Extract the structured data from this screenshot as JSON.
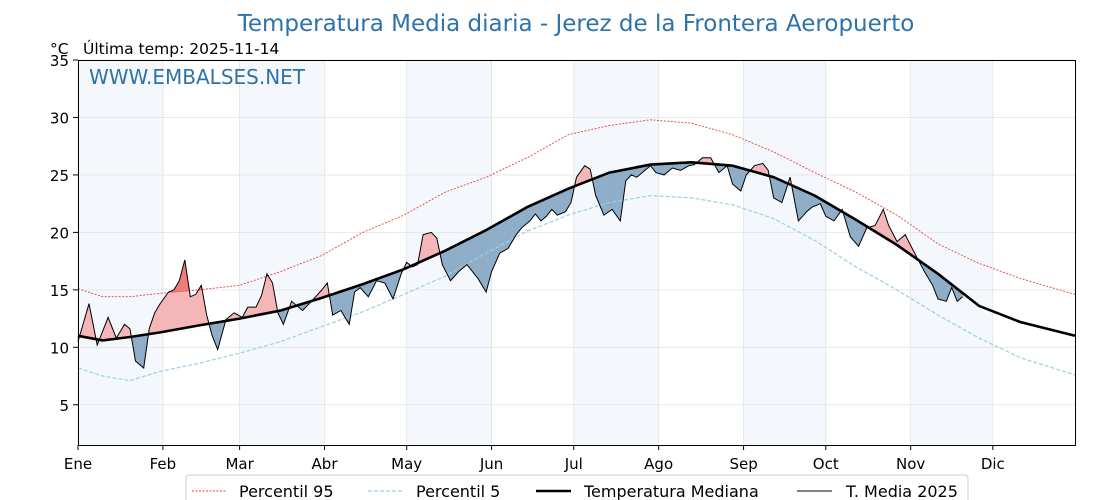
{
  "chart_data": {
    "type": "line",
    "title": "Temperatura Media diaria - Jerez de la Frontera Aeropuerto",
    "unit": "°C",
    "last_temp_label": "Última temp: 2025-11-14",
    "watermark": "WWW.EMBALSES.NET",
    "ylim": [
      1.5,
      35
    ],
    "yticks": [
      5,
      10,
      15,
      20,
      25,
      30,
      35
    ],
    "months": [
      "Ene",
      "Feb",
      "Mar",
      "Abr",
      "May",
      "Jun",
      "Jul",
      "Ago",
      "Sep",
      "Oct",
      "Nov",
      "Dic"
    ],
    "grid": true,
    "legend_position": "bottom",
    "colors": {
      "p95": "#e8433a",
      "p5": "#9ccfe0",
      "median": "#000000",
      "current": "#000000",
      "above_fill": "#f4b6b6",
      "above_extreme_fill": "#ee7272",
      "below_fill": "#8eadc8",
      "band": "#f4f8fc",
      "title": "#2e73a8"
    },
    "series": [
      {
        "name": "Percentil 95",
        "key": "p95",
        "points": [
          [
            1,
            15.1
          ],
          [
            10,
            14.4
          ],
          [
            20,
            14.4
          ],
          [
            31,
            14.7
          ],
          [
            45,
            15.0
          ],
          [
            60,
            15.4
          ],
          [
            75,
            16.6
          ],
          [
            90,
            18.0
          ],
          [
            105,
            20.0
          ],
          [
            120,
            21.5
          ],
          [
            135,
            23.5
          ],
          [
            150,
            24.8
          ],
          [
            165,
            26.5
          ],
          [
            180,
            28.5
          ],
          [
            195,
            29.3
          ],
          [
            210,
            29.8
          ],
          [
            225,
            29.5
          ],
          [
            240,
            28.5
          ],
          [
            255,
            27.0
          ],
          [
            270,
            25.2
          ],
          [
            285,
            23.5
          ],
          [
            300,
            21.5
          ],
          [
            315,
            19.0
          ],
          [
            330,
            17.3
          ],
          [
            345,
            16.0
          ],
          [
            365,
            14.6
          ]
        ]
      },
      {
        "name": "Percentil 5",
        "key": "p5",
        "points": [
          [
            1,
            8.2
          ],
          [
            10,
            7.5
          ],
          [
            20,
            7.1
          ],
          [
            31,
            7.9
          ],
          [
            45,
            8.6
          ],
          [
            60,
            9.5
          ],
          [
            75,
            10.5
          ],
          [
            90,
            11.8
          ],
          [
            105,
            13.1
          ],
          [
            120,
            14.6
          ],
          [
            135,
            16.2
          ],
          [
            150,
            18.2
          ],
          [
            165,
            20.1
          ],
          [
            180,
            21.5
          ],
          [
            195,
            22.6
          ],
          [
            210,
            23.2
          ],
          [
            225,
            23.0
          ],
          [
            240,
            22.4
          ],
          [
            255,
            21.2
          ],
          [
            270,
            19.3
          ],
          [
            285,
            17.0
          ],
          [
            300,
            15.0
          ],
          [
            315,
            12.8
          ],
          [
            330,
            10.8
          ],
          [
            345,
            9.1
          ],
          [
            365,
            7.6
          ]
        ]
      },
      {
        "name": "Temperatura Mediana",
        "key": "median",
        "points": [
          [
            1,
            11.0
          ],
          [
            10,
            10.6
          ],
          [
            20,
            10.9
          ],
          [
            31,
            11.3
          ],
          [
            45,
            11.9
          ],
          [
            60,
            12.5
          ],
          [
            75,
            13.2
          ],
          [
            90,
            14.3
          ],
          [
            105,
            15.5
          ],
          [
            120,
            16.8
          ],
          [
            135,
            18.4
          ],
          [
            150,
            20.2
          ],
          [
            165,
            22.2
          ],
          [
            180,
            23.8
          ],
          [
            195,
            25.2
          ],
          [
            210,
            25.9
          ],
          [
            225,
            26.1
          ],
          [
            240,
            25.8
          ],
          [
            255,
            24.8
          ],
          [
            270,
            23.2
          ],
          [
            285,
            21.1
          ],
          [
            300,
            18.9
          ],
          [
            315,
            16.4
          ],
          [
            330,
            13.6
          ],
          [
            345,
            12.2
          ],
          [
            365,
            11.0
          ]
        ]
      },
      {
        "name": "T. Media 2025",
        "key": "current",
        "points": [
          [
            1,
            10.5
          ],
          [
            5,
            13.8
          ],
          [
            8,
            10.2
          ],
          [
            12,
            12.6
          ],
          [
            15,
            10.8
          ],
          [
            18,
            12.0
          ],
          [
            20,
            11.6
          ],
          [
            22,
            8.8
          ],
          [
            25,
            8.2
          ],
          [
            27,
            11.6
          ],
          [
            29,
            13.0
          ],
          [
            31,
            13.8
          ],
          [
            34,
            14.8
          ],
          [
            36,
            15.0
          ],
          [
            38,
            15.8
          ],
          [
            40,
            17.6
          ],
          [
            42,
            14.4
          ],
          [
            44,
            14.6
          ],
          [
            46,
            15.4
          ],
          [
            48,
            12.8
          ],
          [
            50,
            11.0
          ],
          [
            52,
            9.8
          ],
          [
            55,
            12.4
          ],
          [
            58,
            13.0
          ],
          [
            61,
            12.6
          ],
          [
            63,
            13.5
          ],
          [
            66,
            13.5
          ],
          [
            68,
            14.5
          ],
          [
            70,
            16.4
          ],
          [
            72,
            15.6
          ],
          [
            74,
            13.0
          ],
          [
            76,
            12.0
          ],
          [
            79,
            14.0
          ],
          [
            83,
            13.2
          ],
          [
            87,
            14.2
          ],
          [
            90,
            15.0
          ],
          [
            92,
            15.6
          ],
          [
            94,
            12.8
          ],
          [
            97,
            13.2
          ],
          [
            100,
            12.0
          ],
          [
            102,
            14.8
          ],
          [
            104,
            15.2
          ],
          [
            107,
            14.4
          ],
          [
            110,
            15.8
          ],
          [
            113,
            15.6
          ],
          [
            116,
            14.2
          ],
          [
            119,
            16.4
          ],
          [
            121,
            17.4
          ],
          [
            123,
            17.0
          ],
          [
            125,
            17.2
          ],
          [
            127,
            19.8
          ],
          [
            130,
            20.0
          ],
          [
            132,
            19.5
          ],
          [
            134,
            17.2
          ],
          [
            137,
            15.8
          ],
          [
            140,
            16.6
          ],
          [
            143,
            17.2
          ],
          [
            147,
            16.0
          ],
          [
            150,
            14.8
          ],
          [
            152,
            16.6
          ],
          [
            155,
            18.2
          ],
          [
            158,
            18.6
          ],
          [
            161,
            19.8
          ],
          [
            163,
            20.4
          ],
          [
            166,
            21.0
          ],
          [
            168,
            21.6
          ],
          [
            170,
            21.0
          ],
          [
            172,
            21.4
          ],
          [
            174,
            22.0
          ],
          [
            176,
            21.5
          ],
          [
            179,
            21.8
          ],
          [
            181,
            22.6
          ],
          [
            183,
            24.8
          ],
          [
            186,
            25.8
          ],
          [
            188,
            25.5
          ],
          [
            190,
            23.2
          ],
          [
            193,
            21.5
          ],
          [
            196,
            22.0
          ],
          [
            199,
            21.0
          ],
          [
            201,
            24.5
          ],
          [
            203,
            25.0
          ],
          [
            205,
            24.8
          ],
          [
            208,
            25.4
          ],
          [
            210,
            25.8
          ],
          [
            212,
            25.2
          ],
          [
            215,
            25.0
          ],
          [
            218,
            25.6
          ],
          [
            221,
            25.4
          ],
          [
            224,
            25.8
          ],
          [
            226,
            25.9
          ],
          [
            229,
            26.5
          ],
          [
            232,
            26.5
          ],
          [
            235,
            25.2
          ],
          [
            238,
            25.8
          ],
          [
            240,
            24.2
          ],
          [
            243,
            23.6
          ],
          [
            245,
            25.0
          ],
          [
            248,
            25.8
          ],
          [
            251,
            26.0
          ],
          [
            253,
            25.4
          ],
          [
            255,
            23.0
          ],
          [
            258,
            22.6
          ],
          [
            261,
            24.8
          ],
          [
            264,
            21.0
          ],
          [
            267,
            21.8
          ],
          [
            269,
            22.2
          ],
          [
            272,
            22.5
          ],
          [
            274,
            21.4
          ],
          [
            277,
            21.0
          ],
          [
            280,
            22.0
          ],
          [
            283,
            19.6
          ],
          [
            286,
            18.8
          ],
          [
            289,
            20.4
          ],
          [
            292,
            20.6
          ],
          [
            295,
            22.0
          ],
          [
            297,
            20.6
          ],
          [
            300,
            19.2
          ],
          [
            303,
            19.8
          ],
          [
            306,
            18.4
          ],
          [
            310,
            16.6
          ],
          [
            313,
            15.4
          ],
          [
            315,
            14.2
          ],
          [
            318,
            14.0
          ],
          [
            320,
            15.2
          ],
          [
            322,
            14.0
          ],
          [
            324,
            14.4
          ]
        ]
      }
    ]
  }
}
